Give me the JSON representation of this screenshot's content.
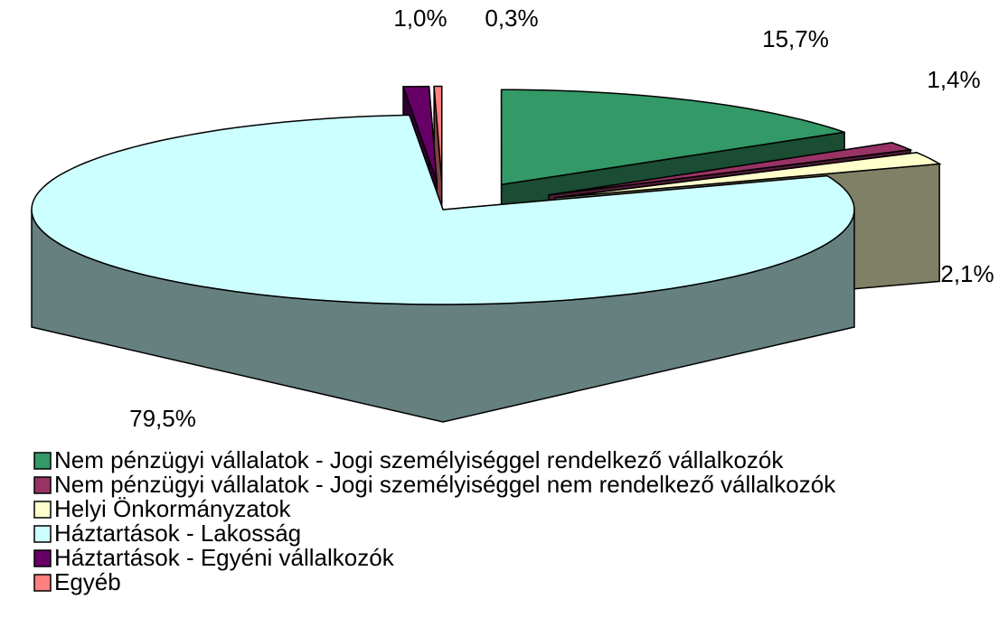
{
  "chart_data": {
    "type": "pie3d",
    "categories": [
      "Nem pénzügyi vállalatok - Jogi személyiséggel rendelkező vállalkozók",
      "Nem pénzügyi vállalatok - Jogi személyiséggel nem rendelkező vállalkozók",
      "Helyi Önkormányzatok",
      "Háztartások - Lakosság",
      "Háztartások - Egyéni vállalkozók",
      "Egyéb"
    ],
    "values": [
      15.7,
      1.4,
      2.1,
      79.5,
      1.0,
      0.3
    ],
    "value_labels": [
      "15,7%",
      "1,4%",
      "2,1%",
      "79,5%",
      "1,0%",
      "0,3%"
    ],
    "colors": [
      "#339966",
      "#993366",
      "#ffffcc",
      "#ccffff",
      "#660066",
      "#ff8080"
    ],
    "legend": "bottom-left"
  }
}
